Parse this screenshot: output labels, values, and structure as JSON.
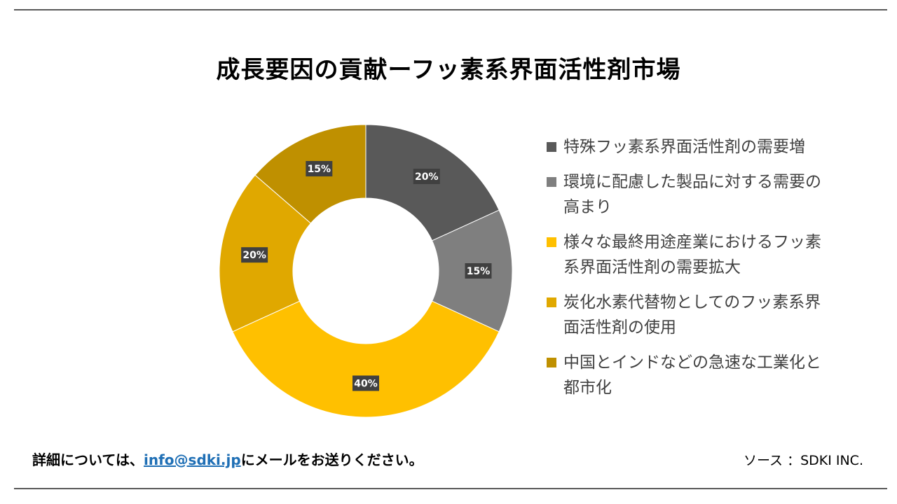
{
  "title": "成長要因の貢献ーフッ素系界面活性剤市場",
  "footer": {
    "left_prefix": "詳細については、",
    "email": "info@sdki.jp",
    "left_suffix": "にメールをお送りください。",
    "source": "ソース ：SDKI INC."
  },
  "chart_data": {
    "type": "pie",
    "style": "donut",
    "title": "",
    "categories": [
      "特殊フッ素系界面活性剤の需要増",
      "環境に配慮した製品に対する需要の高まり",
      "様々な最終用途産業におけるフッ素系界面活性剤の需要拡大",
      "炭化水素代替物としてのフッ素系界面活性剤の使用",
      "中国とインドなどの急速な工業化と都市化"
    ],
    "values": [
      20,
      15,
      40,
      20,
      15
    ],
    "value_labels": [
      "20%",
      "15%",
      "40%",
      "20%",
      "15%"
    ],
    "colors": [
      "#595959",
      "#7f7f7f",
      "#ffc000",
      "#e0a800",
      "#bf9000"
    ],
    "legend_position": "right",
    "legend_lines": [
      [
        "特殊フッ素系界面活性剤の需要増"
      ],
      [
        "環境に配慮した製品に対する需要の",
        "高まり"
      ],
      [
        "様々な最終用途産業におけるフッ素",
        "系界面活性剤の需要拡大"
      ],
      [
        "炭化水素代替物としてのフッ素系界",
        "面活性剤の使用"
      ],
      [
        "中国とインドなどの急速な工業化と",
        "都市化"
      ]
    ]
  }
}
